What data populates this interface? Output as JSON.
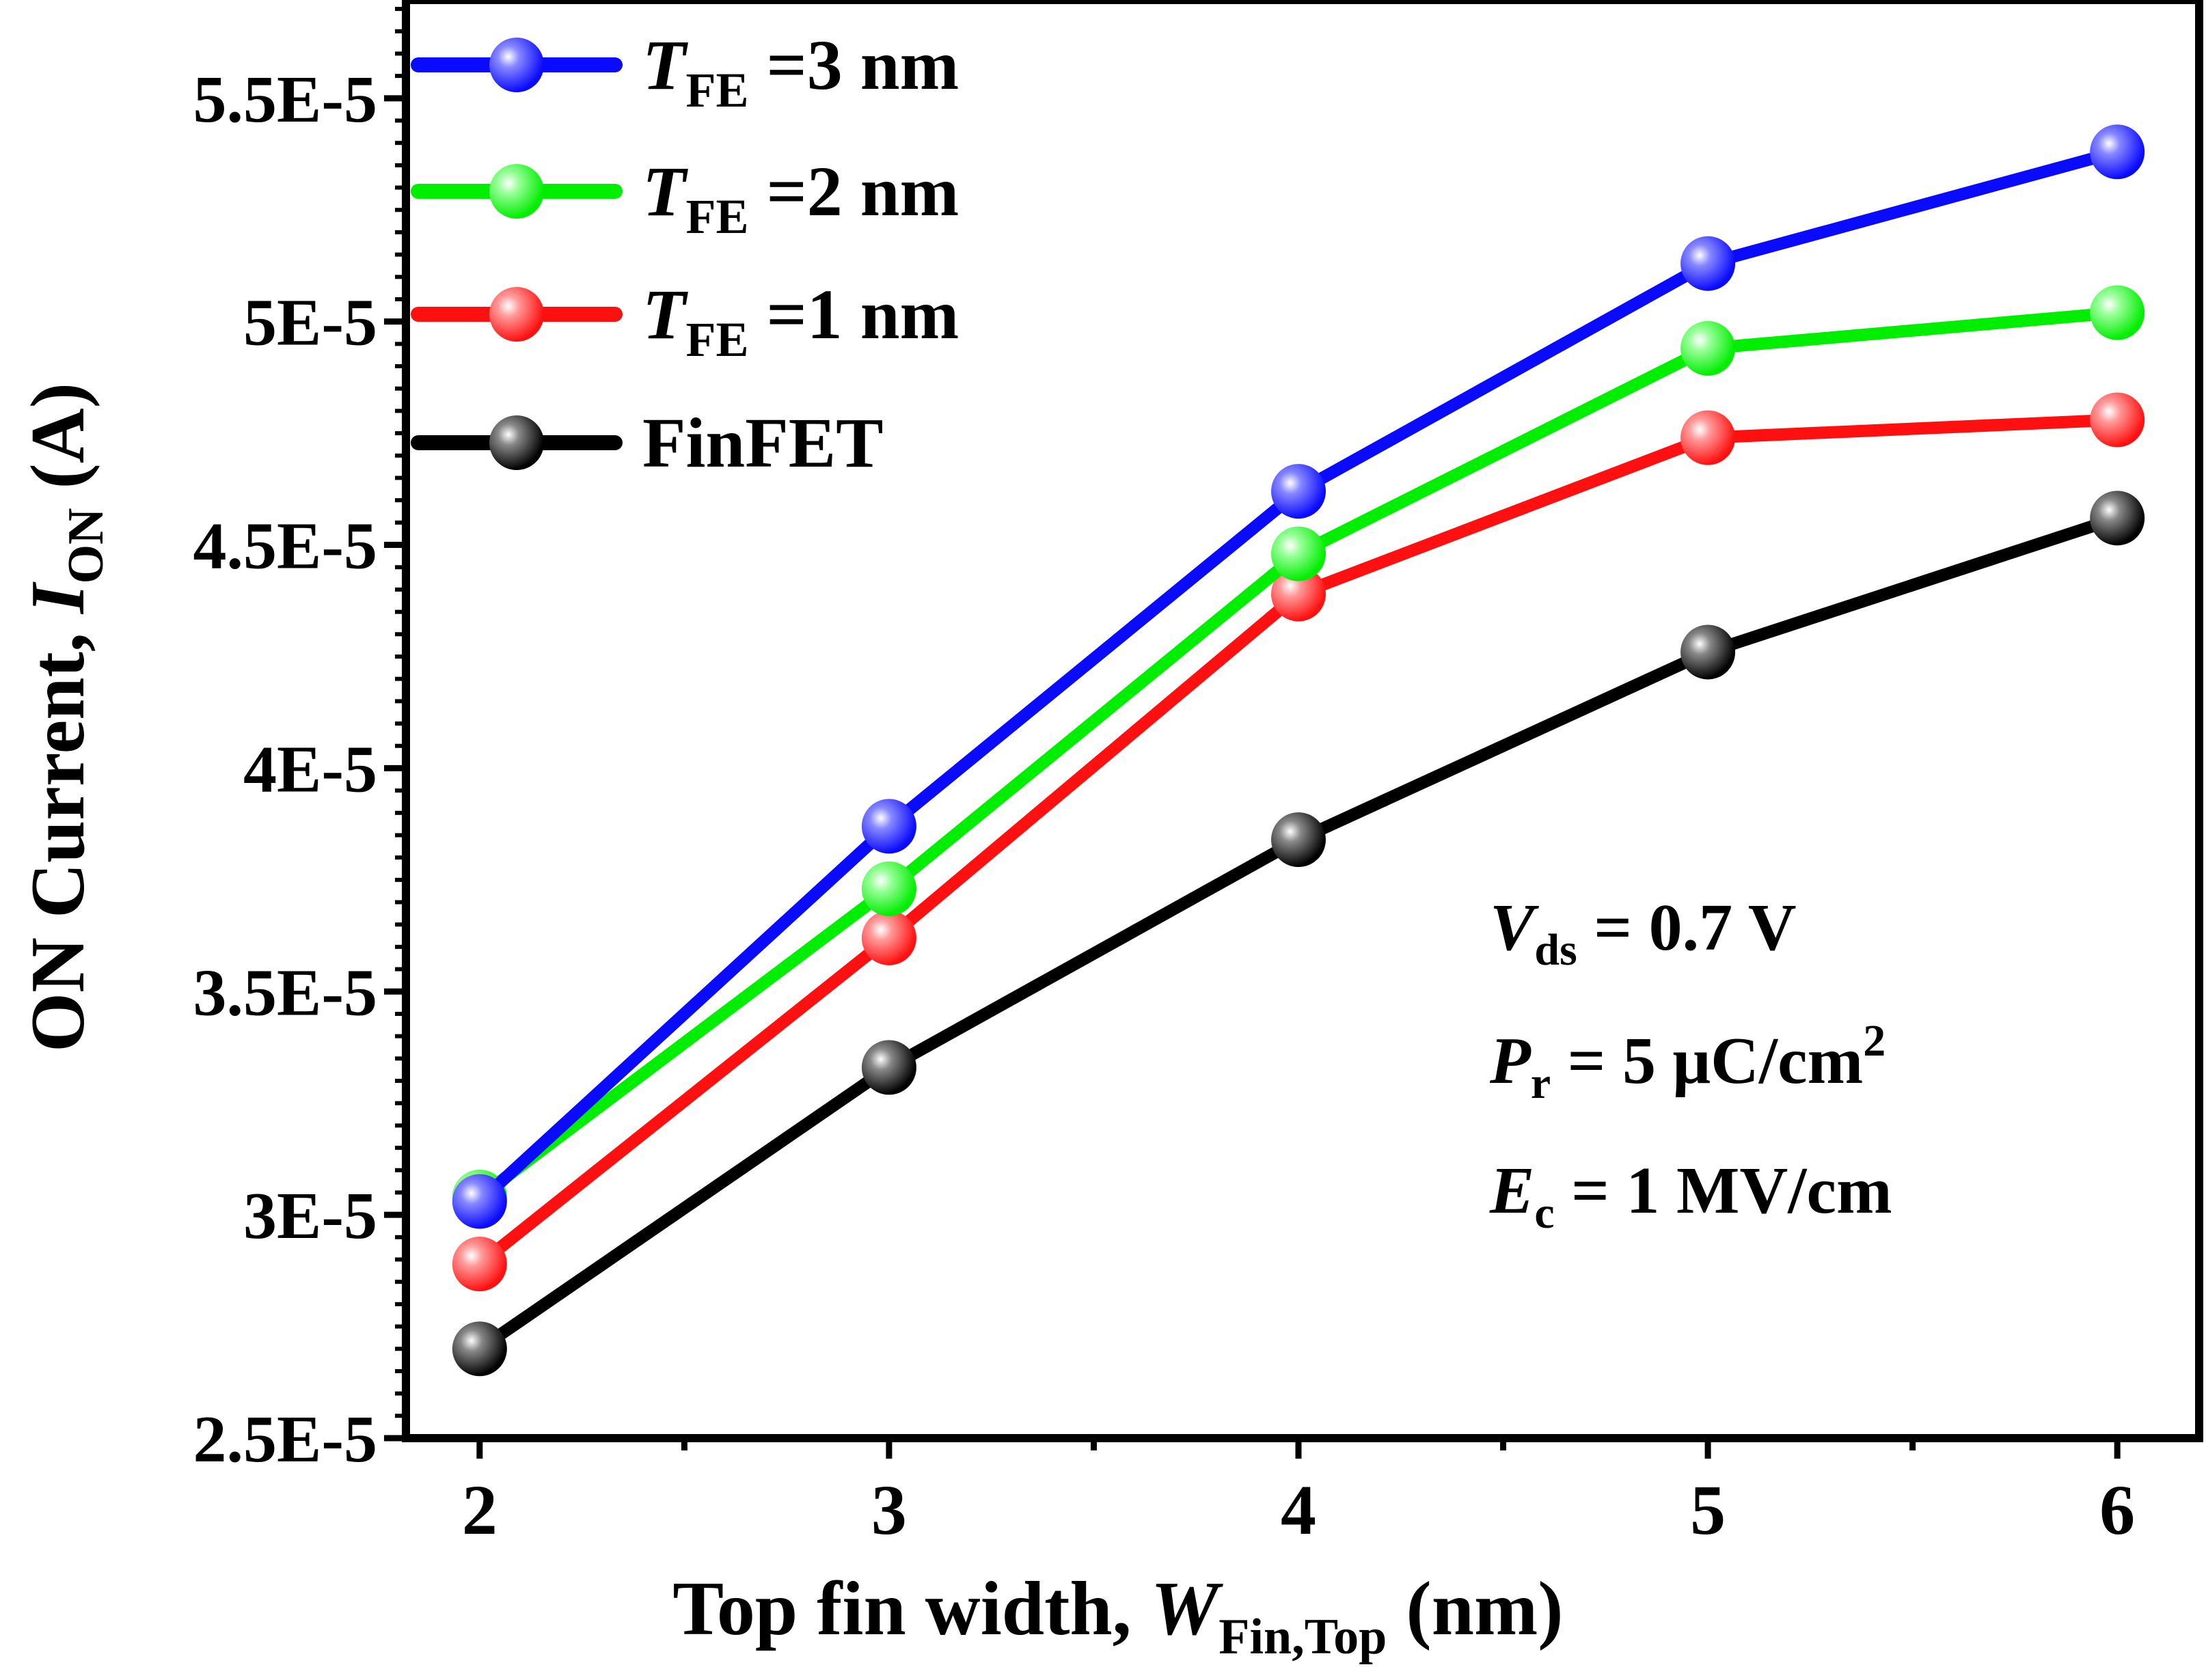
{
  "chart_data": {
    "type": "line",
    "title": "",
    "xlabel": {
      "main": "Top fin width, ",
      "var": "W",
      "sub": "Fin,Top",
      "unit": " (nm)"
    },
    "ylabel": {
      "main": "ON Current, ",
      "var": "I",
      "sub": "ON",
      "unit": " (A)"
    },
    "x": [
      2,
      3,
      4,
      5,
      6
    ],
    "xlim": [
      1.82,
      6.2
    ],
    "ylim": [
      2.5e-05,
      5.72e-05
    ],
    "x_ticks": [
      "2",
      "3",
      "4",
      "5",
      "6"
    ],
    "y_ticks": [
      {
        "value": 2.5e-05,
        "label": "2.5E-5"
      },
      {
        "value": 3e-05,
        "label": "3E-5"
      },
      {
        "value": 3.5e-05,
        "label": "3.5E-5"
      },
      {
        "value": 4e-05,
        "label": "4E-5"
      },
      {
        "value": 4.5e-05,
        "label": "4.5E-5"
      },
      {
        "value": 5e-05,
        "label": "5E-5"
      },
      {
        "value": 5.5e-05,
        "label": "5.5E-5"
      }
    ],
    "grid": false,
    "legend_position": "top-left",
    "series": [
      {
        "var": "T",
        "sub": "FE",
        "suffix": " =3 nm",
        "color": "#0a0aff",
        "values": [
          3.03e-05,
          3.87e-05,
          4.62e-05,
          5.13e-05,
          5.38e-05
        ]
      },
      {
        "var": "T",
        "sub": "FE",
        "suffix": " =2 nm",
        "color": "#00ee00",
        "values": [
          3.04e-05,
          3.73e-05,
          4.48e-05,
          4.94e-05,
          5.02e-05
        ]
      },
      {
        "var": "T",
        "sub": "FE",
        "suffix": " =1 nm",
        "color": "#ff1010",
        "values": [
          2.89e-05,
          3.62e-05,
          4.39e-05,
          4.74e-05,
          4.78e-05
        ]
      },
      {
        "name": "FinFET",
        "color": "#000000",
        "values": [
          2.7e-05,
          3.33e-05,
          3.84e-05,
          4.26e-05,
          4.56e-05
        ]
      }
    ],
    "annotations": [
      {
        "var": "V",
        "sub": "ds",
        "text": " = 0.7 V"
      },
      {
        "var": "P",
        "sub": "r",
        "text": " = 5 μC/cm",
        "sup": "2"
      },
      {
        "var": "E",
        "sub": "c",
        "text": " = 1 MV/cm"
      }
    ]
  }
}
